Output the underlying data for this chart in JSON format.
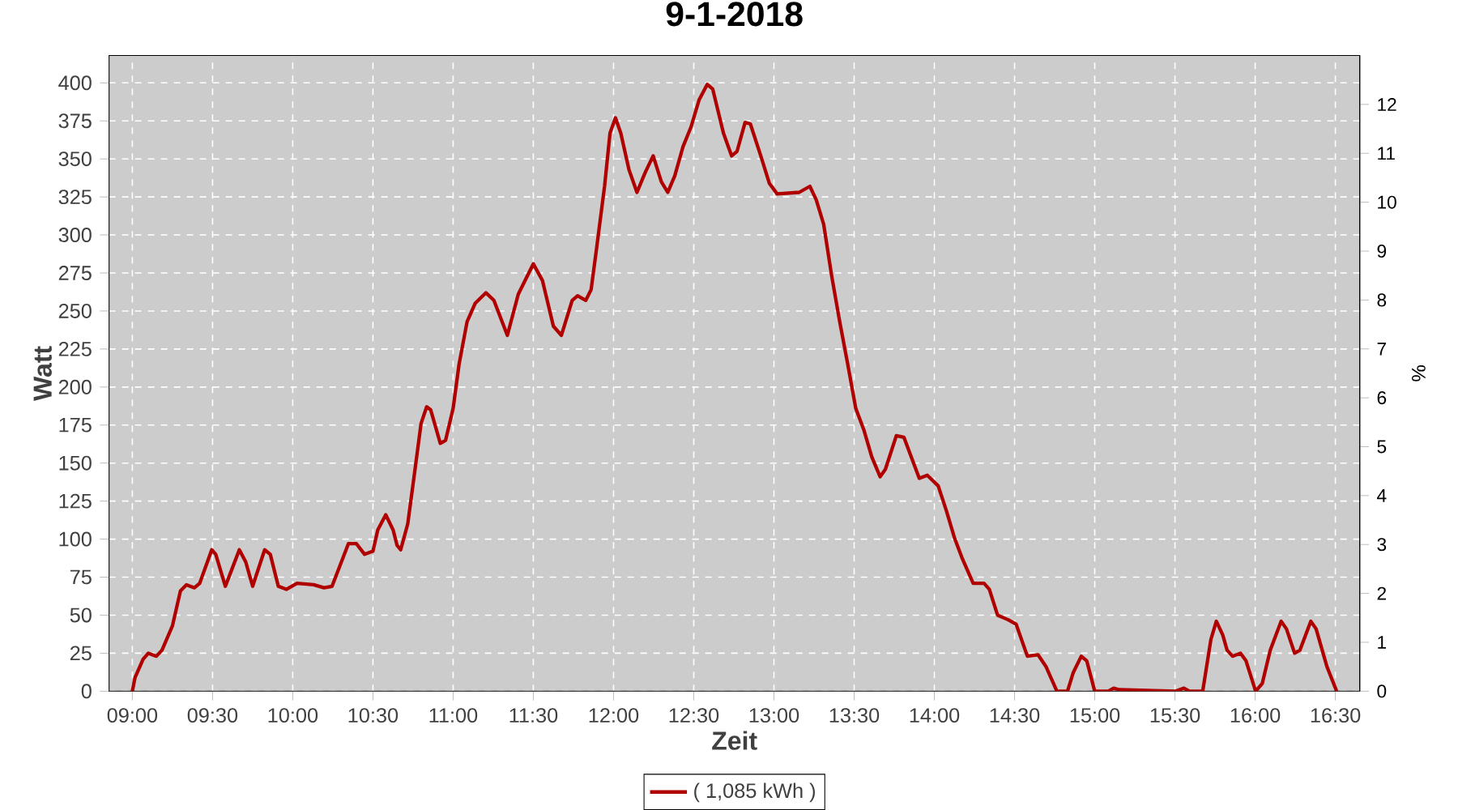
{
  "chart_data": {
    "type": "line",
    "title": "9-1-2018",
    "xlabel": "Zeit",
    "ylabel": "Watt",
    "y2label": "%",
    "xlim": [
      8.855,
      16.652
    ],
    "ylim": [
      0,
      418
    ],
    "y2lim": [
      0,
      13
    ],
    "xticks": [
      {
        "value": 9,
        "label": "09:00"
      },
      {
        "value": 9.5,
        "label": "09:30"
      },
      {
        "value": 10,
        "label": "10:00"
      },
      {
        "value": 10.5,
        "label": "10:30"
      },
      {
        "value": 11,
        "label": "11:00"
      },
      {
        "value": 11.5,
        "label": "11:30"
      },
      {
        "value": 12,
        "label": "12:00"
      },
      {
        "value": 12.5,
        "label": "12:30"
      },
      {
        "value": 13,
        "label": "13:00"
      },
      {
        "value": 13.5,
        "label": "13:30"
      },
      {
        "value": 14,
        "label": "14:00"
      },
      {
        "value": 14.5,
        "label": "14:30"
      },
      {
        "value": 15,
        "label": "15:00"
      },
      {
        "value": 15.5,
        "label": "15:30"
      },
      {
        "value": 16,
        "label": "16:00"
      },
      {
        "value": 16.5,
        "label": "16:30"
      }
    ],
    "yticks": [
      0,
      25,
      50,
      75,
      100,
      125,
      150,
      175,
      200,
      225,
      250,
      275,
      300,
      325,
      350,
      375,
      400
    ],
    "y2ticks": [
      0,
      1,
      2,
      3,
      4,
      5,
      6,
      7,
      8,
      9,
      10,
      11,
      12
    ],
    "grid": true,
    "legend": "bottom",
    "marker": "none",
    "line_style": "solid",
    "series": [
      {
        "name": "( 1,085 kWh )",
        "color": "#b00000",
        "x": [
          9.0,
          9.017,
          9.067,
          9.1,
          9.15,
          9.185,
          9.25,
          9.3,
          9.337,
          9.387,
          9.42,
          9.495,
          9.52,
          9.58,
          9.62,
          9.667,
          9.707,
          9.75,
          9.825,
          9.86,
          9.91,
          9.96,
          10.027,
          10.13,
          10.195,
          10.245,
          10.347,
          10.397,
          10.448,
          10.5,
          10.53,
          10.58,
          10.626,
          10.65,
          10.673,
          10.717,
          10.76,
          10.8,
          10.835,
          10.86,
          10.92,
          10.953,
          11.0,
          11.037,
          11.087,
          11.137,
          11.204,
          11.254,
          11.338,
          11.406,
          11.5,
          11.557,
          11.625,
          11.675,
          11.742,
          11.776,
          11.827,
          11.86,
          11.894,
          11.944,
          11.978,
          12.012,
          12.045,
          12.096,
          12.146,
          12.197,
          12.247,
          12.298,
          12.338,
          12.382,
          12.433,
          12.483,
          12.534,
          12.584,
          12.618,
          12.685,
          12.736,
          12.77,
          12.82,
          12.853,
          12.921,
          12.971,
          13.02,
          13.157,
          13.224,
          13.264,
          13.31,
          13.36,
          13.41,
          13.46,
          13.51,
          13.56,
          13.61,
          13.662,
          13.695,
          13.763,
          13.81,
          13.906,
          13.956,
          14.024,
          14.074,
          14.125,
          14.175,
          14.242,
          14.31,
          14.343,
          14.394,
          14.46,
          14.51,
          14.58,
          14.646,
          14.697,
          14.764,
          14.83,
          14.865,
          14.916,
          14.95,
          15.0,
          15.084,
          15.118,
          15.152,
          15.505,
          15.556,
          15.59,
          15.673,
          15.724,
          15.758,
          15.798,
          15.825,
          15.859,
          15.909,
          15.943,
          16.003,
          16.044,
          16.094,
          16.162,
          16.195,
          16.246,
          16.279,
          16.347,
          16.38,
          16.448,
          16.508
        ],
        "values": [
          0,
          9,
          21,
          25,
          23,
          27,
          43,
          66,
          70,
          68,
          71,
          93,
          90,
          69,
          80,
          93,
          85,
          69,
          93,
          90,
          69,
          67,
          71,
          70,
          68,
          69,
          97,
          97,
          90,
          92,
          106,
          116,
          106,
          96,
          93,
          110,
          144,
          176,
          187,
          185,
          163,
          165,
          186,
          215,
          243,
          255,
          262,
          257,
          234,
          261,
          281,
          270,
          240,
          234,
          257,
          260,
          257,
          264,
          291,
          332,
          367,
          377,
          367,
          343,
          328,
          341,
          352,
          335,
          328,
          339,
          358,
          371,
          389,
          399,
          396,
          367,
          352,
          355,
          374,
          373,
          351,
          334,
          327,
          328,
          332,
          323,
          307,
          273,
          243,
          215,
          186,
          172,
          154,
          141,
          146,
          168,
          167,
          140,
          142,
          135,
          119,
          101,
          87,
          71,
          71,
          67,
          50,
          47,
          44,
          23,
          24,
          16,
          0,
          0,
          12,
          23,
          20,
          0,
          0,
          2,
          1,
          0,
          2,
          0,
          0,
          34,
          46,
          37,
          27,
          23,
          25,
          20,
          0,
          5,
          27,
          46,
          41,
          25,
          27,
          46,
          41,
          16,
          0
        ]
      }
    ]
  }
}
